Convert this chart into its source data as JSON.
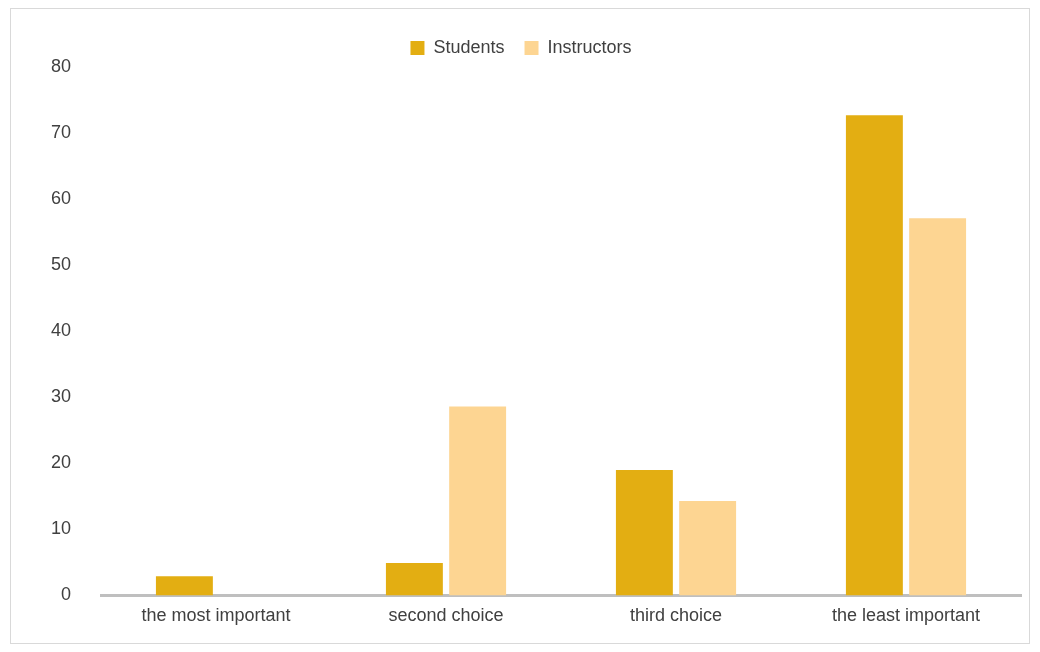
{
  "chart_data": {
    "type": "bar",
    "categories": [
      "the most important",
      "second choice",
      "third choice",
      "the least important"
    ],
    "series": [
      {
        "name": "Students",
        "color": "#e3ae12",
        "values": [
          2.9,
          4.9,
          19,
          72.7
        ]
      },
      {
        "name": "Instructors",
        "color": "#fdd592",
        "values": [
          0,
          28.6,
          14.3,
          57.1
        ]
      }
    ],
    "ylim": [
      0,
      80
    ],
    "yticks": [
      0,
      10,
      20,
      30,
      40,
      50,
      60,
      70,
      80
    ],
    "grid": false,
    "legend": "top"
  }
}
